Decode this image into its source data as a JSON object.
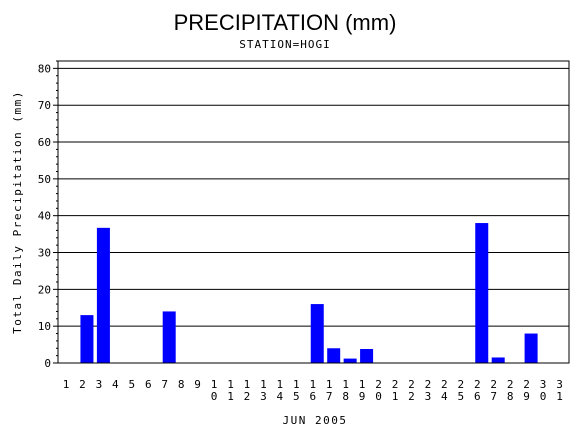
{
  "chart_data": {
    "type": "bar",
    "title": "PRECIPITATION (mm)",
    "subtitle": "STATION=HOGI",
    "xlabel": "JUN 2005",
    "ylabel": "Total Daily Precipitation (mm)",
    "ylim": [
      0,
      82
    ],
    "yticks": [
      0,
      10,
      20,
      30,
      40,
      50,
      60,
      70,
      80
    ],
    "grid": true,
    "bar_color": "#0000ff",
    "categories": [
      "1",
      "2",
      "3",
      "4",
      "5",
      "6",
      "7",
      "8",
      "9",
      "10",
      "11",
      "12",
      "13",
      "14",
      "15",
      "16",
      "17",
      "18",
      "19",
      "20",
      "21",
      "22",
      "23",
      "24",
      "25",
      "26",
      "27",
      "28",
      "29",
      "30",
      "31"
    ],
    "values": [
      0,
      13,
      36.7,
      0,
      0,
      0,
      14,
      0,
      0,
      0,
      0,
      0,
      0,
      0,
      0,
      16,
      4,
      1.2,
      3.8,
      0,
      0,
      0,
      0,
      0,
      0,
      38,
      1.5,
      0,
      8,
      0,
      0
    ]
  }
}
